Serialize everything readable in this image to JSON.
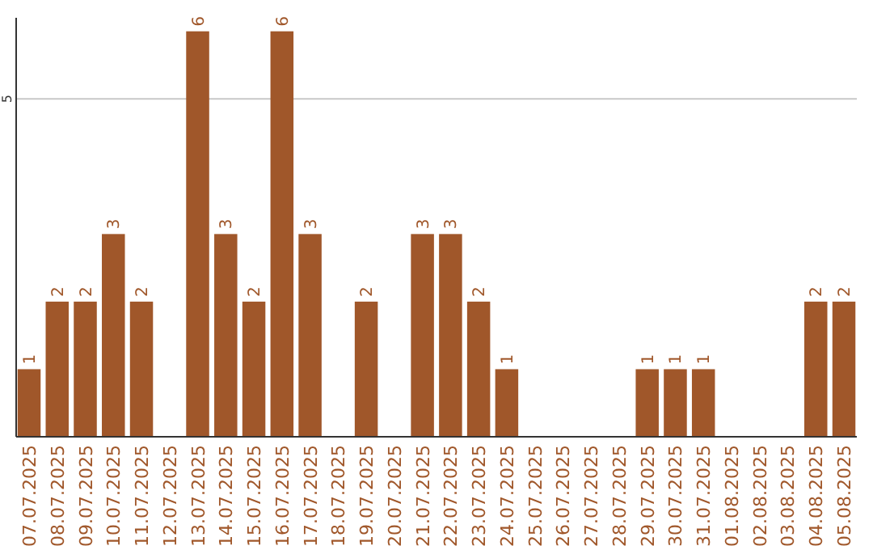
{
  "chart_data": {
    "type": "bar",
    "categories": [
      "07.07.2025",
      "08.07.2025",
      "09.07.2025",
      "10.07.2025",
      "11.07.2025",
      "12.07.2025",
      "13.07.2025",
      "14.07.2025",
      "15.07.2025",
      "16.07.2025",
      "17.07.2025",
      "18.07.2025",
      "19.07.2025",
      "20.07.2025",
      "21.07.2025",
      "22.07.2025",
      "23.07.2025",
      "24.07.2025",
      "25.07.2025",
      "26.07.2025",
      "27.07.2025",
      "28.07.2025",
      "29.07.2025",
      "30.07.2025",
      "31.07.2025",
      "01.08.2025",
      "02.08.2025",
      "03.08.2025",
      "04.08.2025",
      "05.08.2025"
    ],
    "values": [
      1,
      2,
      2,
      3,
      2,
      0,
      6,
      3,
      2,
      6,
      3,
      0,
      2,
      0,
      3,
      3,
      2,
      1,
      0,
      0,
      0,
      0,
      1,
      1,
      1,
      0,
      0,
      0,
      2,
      2
    ],
    "value_labels": [
      "1",
      "2",
      "2",
      "3",
      "2",
      null,
      "6",
      "3",
      "2",
      "6",
      "3",
      null,
      "2",
      null,
      "3",
      "3",
      "2",
      "1",
      null,
      null,
      null,
      null,
      "1",
      "1",
      "1",
      null,
      null,
      null,
      "2",
      "2"
    ],
    "color": "#a0572a",
    "ylim": [
      0,
      6.2
    ],
    "yticks": [
      5
    ],
    "grid": "y"
  }
}
